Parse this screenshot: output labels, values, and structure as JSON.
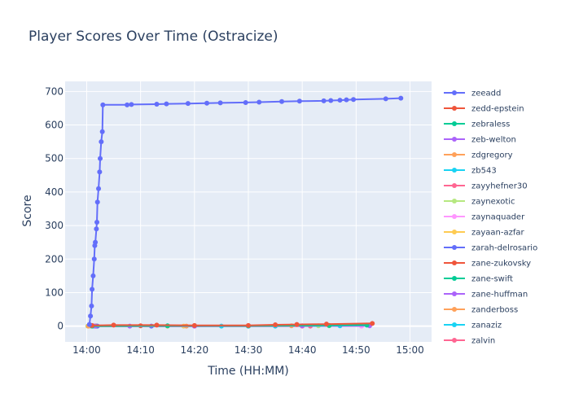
{
  "chart_data": {
    "type": "line",
    "title": "Player Scores Over Time (Ostracize)",
    "xlabel": "Time (HH:MM)",
    "ylabel": "Score",
    "x_range": [
      "13:56",
      "15:04"
    ],
    "ylim": [
      -47,
      730
    ],
    "x_ticks": [
      "14:00",
      "14:10",
      "14:20",
      "14:30",
      "14:40",
      "14:50",
      "15:00"
    ],
    "y_ticks": [
      0,
      100,
      200,
      300,
      400,
      500,
      600,
      700
    ],
    "grid": true,
    "legend_position": "right",
    "series": [
      {
        "name": "zeeadd",
        "color": "#636efa",
        "x": [
          "14:00.5",
          "14:00.7",
          "14:00.9",
          "14:01.0",
          "14:01.2",
          "14:01.4",
          "14:01.5",
          "14:01.6",
          "14:01.8",
          "14:01.9",
          "14:02.0",
          "14:02.2",
          "14:02.4",
          "14:02.5",
          "14:02.7",
          "14:02.9",
          "14:03.0",
          "14:07.5",
          "14:08.3",
          "14:13.0",
          "14:14.8",
          "14:18.8",
          "14:22.3",
          "14:24.8",
          "14:29.5",
          "14:32.0",
          "14:36.2",
          "14:39.5",
          "14:44.0",
          "14:45.3",
          "14:47.0",
          "14:48.2",
          "14:49.5",
          "14:55.5",
          "14:58.3"
        ],
        "y": [
          5,
          30,
          60,
          110,
          150,
          200,
          240,
          250,
          290,
          310,
          370,
          410,
          460,
          500,
          550,
          580,
          660,
          660,
          661,
          662,
          663,
          664,
          665,
          666,
          667,
          668,
          670,
          671,
          672,
          673,
          674,
          675,
          676,
          678,
          680
        ]
      },
      {
        "name": "zedd-epstein",
        "color": "#ef553b",
        "x": [
          "14:01.0",
          "14:05.0",
          "14:13.0",
          "14:20.0",
          "14:30.0",
          "14:35.0",
          "14:39.0",
          "14:44.5",
          "14:53.0"
        ],
        "y": [
          2,
          3,
          3,
          2,
          2,
          4,
          5,
          6,
          8
        ]
      },
      {
        "name": "zebraless",
        "color": "#00cc96",
        "x": [
          "14:01.0",
          "14:15.0",
          "14:30.0",
          "14:45.0",
          "14:52.0"
        ],
        "y": [
          0,
          1,
          1,
          2,
          3
        ]
      },
      {
        "name": "zeb-welton",
        "color": "#ab63fa",
        "x": [
          "14:01.5",
          "14:08.0",
          "14:20.0",
          "14:40.0",
          "14:52.5"
        ],
        "y": [
          0,
          0,
          0,
          1,
          1
        ]
      },
      {
        "name": "zdgregory",
        "color": "#ffa15a",
        "x": [
          "14:00.3",
          "14:18.5",
          "14:38.0",
          "14:45.0"
        ],
        "y": [
          0,
          0,
          1,
          2
        ]
      },
      {
        "name": "zb543",
        "color": "#19d3f3",
        "x": [
          "14:01.2",
          "14:25.0",
          "14:30.0",
          "14:47.0"
        ],
        "y": [
          0,
          0,
          0,
          1
        ]
      },
      {
        "name": "zayyhefner30",
        "color": "#ff6692",
        "x": [
          "14:01.3",
          "14:41.5"
        ],
        "y": [
          0,
          0
        ]
      },
      {
        "name": "zaynexotic",
        "color": "#b6e880",
        "x": [
          "14:00.2",
          "14:43.0",
          "14:45.0"
        ],
        "y": [
          0,
          1,
          1
        ]
      },
      {
        "name": "zaynaquader",
        "color": "#ff97ff",
        "x": [
          "14:00.4",
          "14:51.0"
        ],
        "y": [
          0,
          0
        ]
      },
      {
        "name": "zayaan-azfar",
        "color": "#fecb52",
        "x": [
          "14:00.6",
          "14:18.0"
        ],
        "y": [
          0,
          0
        ]
      },
      {
        "name": "zarah-delrosario",
        "color": "#636efa",
        "x": [
          "14:02.0",
          "14:12.0"
        ],
        "y": [
          0,
          0
        ]
      },
      {
        "name": "zane-zukovsky",
        "color": "#ef553b",
        "x": [
          "14:01.7",
          "14:10.0"
        ],
        "y": [
          0,
          1
        ]
      },
      {
        "name": "zane-swift",
        "color": "#00cc96",
        "x": [
          "14:01.9",
          "14:30.0"
        ],
        "y": [
          0,
          0
        ]
      },
      {
        "name": "zane-huffman",
        "color": "#ab63fa",
        "x": [
          "14:01.1",
          "14:20.0"
        ],
        "y": [
          0,
          0
        ]
      },
      {
        "name": "zanderboss",
        "color": "#ffa15a",
        "x": [
          "14:00.8",
          "14:15.0"
        ],
        "y": [
          0,
          0
        ]
      },
      {
        "name": "zanaziz",
        "color": "#19d3f3",
        "x": [
          "14:01.4",
          "14:35.0"
        ],
        "y": [
          0,
          0
        ]
      },
      {
        "name": "zalvin",
        "color": "#ff6692",
        "x": [
          "14:01.6",
          "14:40.0"
        ],
        "y": [
          0,
          0
        ]
      }
    ]
  }
}
